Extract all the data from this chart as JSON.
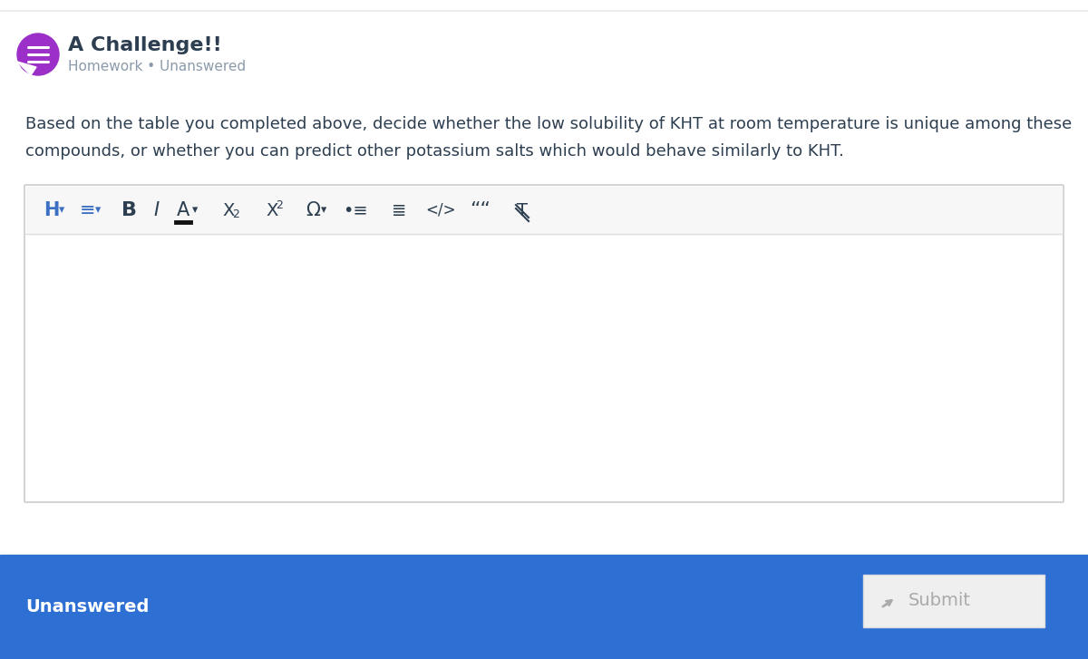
{
  "bg_color": "#ffffff",
  "top_border_color": "#e8e8e8",
  "title": "A Challenge!!",
  "title_color": "#2c3e50",
  "subtitle": "Homework • Unanswered",
  "subtitle_color": "#8a9aaa",
  "icon_color": "#9b2fc8",
  "body_text_line1": "Based on the table you completed above, decide whether the low solubility of KHT at room temperature is unique among these",
  "body_text_line2": "compounds, or whether you can predict other potassium salts which would behave similarly to KHT.",
  "body_text_color": "#2c3e50",
  "toolbar_bg": "#f7f7f7",
  "toolbar_border": "#dedede",
  "editor_border": "#cccccc",
  "editor_bg": "#ffffff",
  "footer_bg": "#2e6fd4",
  "footer_text": "Unanswered",
  "footer_text_color": "#ffffff",
  "submit_bg": "#efefef",
  "submit_text": "Submit",
  "submit_text_color": "#aaaaaa",
  "submit_border": "#dddddd",
  "icon_dark": "#2c3e50",
  "icon_blue": "#3a6fc4"
}
